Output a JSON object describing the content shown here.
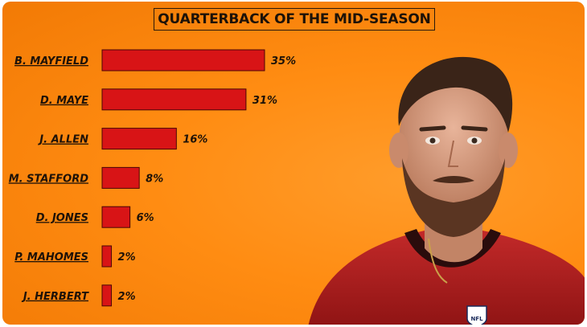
{
  "chart_data": {
    "type": "bar",
    "orientation": "horizontal",
    "title": "QUARTERBACK OF THE MID-SEASON",
    "categories": [
      "B. MAYFIELD",
      "D. MAYE",
      "J. ALLEN",
      "M. STAFFORD",
      "D. JONES",
      "P. MAHOMES",
      "J. HERBERT"
    ],
    "values": [
      35,
      31,
      16,
      8,
      6,
      2,
      2
    ],
    "value_labels": [
      "35%",
      "31%",
      "16%",
      "8%",
      "6%",
      "2%",
      "2%"
    ],
    "xlim": [
      0,
      35
    ],
    "grid": false,
    "legend": "none"
  },
  "colors": {
    "bar_fill": "#d81416",
    "bar_stroke": "#4a0606",
    "label_text": "#1e1208",
    "background": "#ff8c12"
  },
  "photo": {
    "icon": "quarterback-portrait-icon",
    "jersey_logo": "NFL"
  }
}
